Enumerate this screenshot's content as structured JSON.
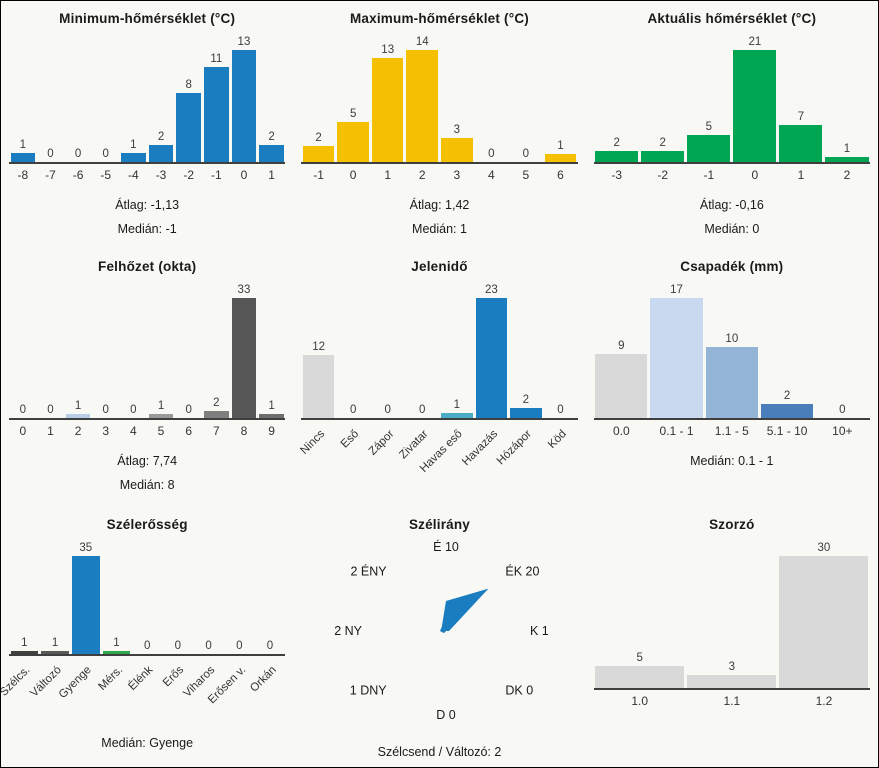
{
  "page": {
    "background": "#f8f8f5",
    "border_color": "#000000"
  },
  "chart_data": [
    {
      "id": "minimum-temperature",
      "type": "bar",
      "title": "Minimum-hőmérséklet (°C)",
      "categories": [
        "-8",
        "-7",
        "-6",
        "-5",
        "-4",
        "-3",
        "-2",
        "-1",
        "0",
        "1"
      ],
      "values": [
        1,
        0,
        0,
        0,
        1,
        2,
        8,
        11,
        13,
        2
      ],
      "bar_color": "#1a7dbf",
      "rotated_labels": false,
      "footer": [
        "Átlag: -1,13",
        "Medián: -1"
      ]
    },
    {
      "id": "maximum-temperature",
      "type": "bar",
      "title": "Maximum-hőmérséklet (°C)",
      "categories": [
        "-1",
        "0",
        "1",
        "2",
        "3",
        "4",
        "5",
        "6"
      ],
      "values": [
        2,
        5,
        13,
        14,
        3,
        0,
        0,
        1
      ],
      "bar_color": "#f5c001",
      "rotated_labels": false,
      "footer": [
        "Átlag: 1,42",
        "Medián: 1"
      ]
    },
    {
      "id": "current-temperature",
      "type": "bar",
      "title": "Aktuális hőmérséklet (°C)",
      "categories": [
        "-3",
        "-2",
        "-1",
        "0",
        "1",
        "2"
      ],
      "values": [
        2,
        2,
        5,
        21,
        7,
        1
      ],
      "bar_color": "#00a652",
      "rotated_labels": false,
      "footer": [
        "Átlag: -0,16",
        "Medián: 0"
      ]
    },
    {
      "id": "cloud-cover",
      "type": "bar",
      "title": "Felhőzet (okta)",
      "categories": [
        "0",
        "1",
        "2",
        "3",
        "4",
        "5",
        "6",
        "7",
        "8",
        "9"
      ],
      "values": [
        0,
        0,
        1,
        0,
        0,
        1,
        0,
        2,
        33,
        1
      ],
      "colors": [
        "#d9d9d9",
        "#d9d9d9",
        "#b9cde5",
        "#d9d9d9",
        "#d9d9d9",
        "#9a9a9a",
        "#d9d9d9",
        "#7f7f7f",
        "#575757",
        "#6e6e6e"
      ],
      "rotated_labels": false,
      "footer": [
        "Átlag: 7,74",
        "Medián: 8"
      ]
    },
    {
      "id": "present-weather",
      "type": "bar",
      "title": "Jelenidő",
      "categories": [
        "Nincs",
        "Eső",
        "Zápor",
        "Zivatar",
        "Havas eső",
        "Havazás",
        "Hózápor",
        "Köd"
      ],
      "values": [
        12,
        0,
        0,
        0,
        1,
        23,
        2,
        0
      ],
      "colors": [
        "#d9d9d9",
        "#d9d9d9",
        "#d9d9d9",
        "#d9d9d9",
        "#4bacc6",
        "#1a7dbf",
        "#1a7dbf",
        "#d9d9d9"
      ],
      "rotated_labels": true,
      "footer": []
    },
    {
      "id": "precipitation",
      "type": "bar",
      "title": "Csapadék (mm)",
      "categories": [
        "0.0",
        "0.1 - 1",
        "1.1 - 5",
        "5.1 - 10",
        "10+"
      ],
      "values": [
        9,
        17,
        10,
        2,
        0
      ],
      "colors": [
        "#d9d9d9",
        "#c9d9ef",
        "#95b5d8",
        "#4a7ebb",
        "#d9d9d9"
      ],
      "rotated_labels": false,
      "footer": [
        "Medián: 0.1 - 1"
      ]
    },
    {
      "id": "wind-strength",
      "type": "bar",
      "title": "Szélerősség",
      "categories": [
        "Szélcs.",
        "Változó",
        "Gyenge",
        "Mérs.",
        "Élénk",
        "Erős",
        "Viharos",
        "Erősen v.",
        "Orkán"
      ],
      "values": [
        1,
        1,
        35,
        1,
        0,
        0,
        0,
        0,
        0
      ],
      "colors": [
        "#404040",
        "#595959",
        "#1a7dbf",
        "#2fa94f",
        "#d9d9d9",
        "#d9d9d9",
        "#d9d9d9",
        "#d9d9d9",
        "#d9d9d9"
      ],
      "rotated_labels": true,
      "footer": [
        "Medián: Gyenge"
      ]
    },
    {
      "id": "wind-direction",
      "type": "radar",
      "title": "Szélirány",
      "directions": [
        {
          "name": "É",
          "value": 10
        },
        {
          "name": "ÉK",
          "value": 20
        },
        {
          "name": "K",
          "value": 1
        },
        {
          "name": "DK",
          "value": 0
        },
        {
          "name": "D",
          "value": 0
        },
        {
          "name": "DNY",
          "value": 1
        },
        {
          "name": "NY",
          "value": 2
        },
        {
          "name": "ÉNY",
          "value": 2
        }
      ],
      "fill_color": "#1a7dbf",
      "footer": [
        "Szélcsend / Változó: 2"
      ]
    },
    {
      "id": "multiplier",
      "type": "bar",
      "title": "Szorzó",
      "categories": [
        "1.0",
        "1.1",
        "1.2"
      ],
      "values": [
        5,
        3,
        30
      ],
      "bar_color": "#d9d9d9",
      "rotated_labels": false,
      "footer": []
    }
  ]
}
